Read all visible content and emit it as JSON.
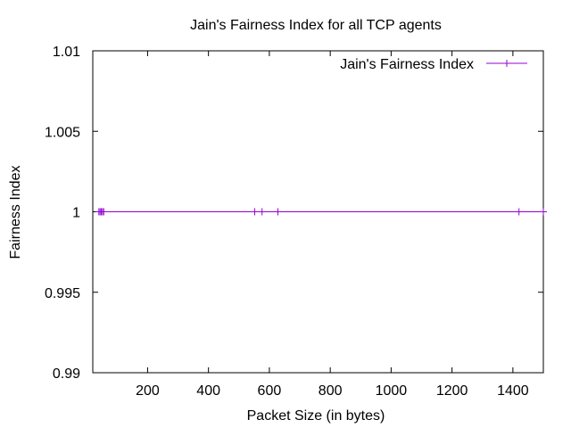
{
  "chart_data": {
    "type": "line",
    "title": "Jain's Fairness Index for all TCP agents",
    "xlabel": "Packet Size (in bytes)",
    "ylabel": "Fairness Index",
    "xlim": [
      20,
      1500
    ],
    "ylim": [
      0.99,
      1.01
    ],
    "x_ticks": [
      200,
      400,
      600,
      800,
      1000,
      1200,
      1400
    ],
    "x_tick_labels": [
      "200",
      "400",
      "600",
      "800",
      "1000",
      "1200",
      "1400"
    ],
    "y_ticks": [
      0.99,
      0.995,
      1,
      1.005,
      1.01
    ],
    "y_tick_labels": [
      "0.99",
      "0.995",
      "1",
      "1.005",
      "1.01"
    ],
    "grid": false,
    "legend_position": "top-right",
    "series": [
      {
        "name": "Jain's Fairness Index",
        "color": "#9400d3",
        "marker": "plus",
        "x": [
          40,
          44,
          48,
          52,
          56,
          552,
          576,
          628,
          1420,
          1500
        ],
        "y": [
          1,
          1,
          1,
          1,
          1,
          1,
          1,
          1,
          1,
          1
        ]
      }
    ]
  }
}
